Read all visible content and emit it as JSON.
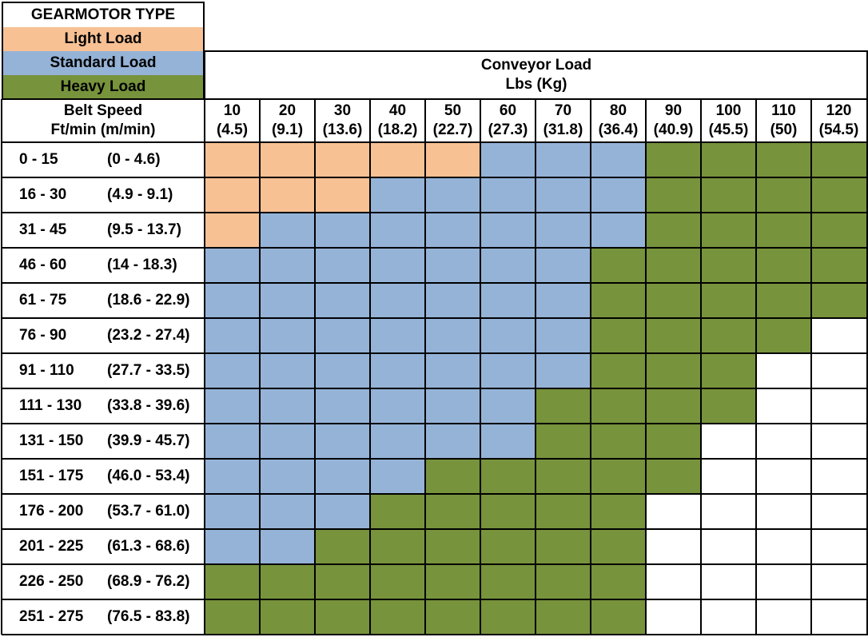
{
  "legend": {
    "title": "GEARMOTOR TYPE",
    "items": [
      {
        "label": "Light Load",
        "color": "#F8C194"
      },
      {
        "label": "Standard Load",
        "color": "#95B3D7"
      },
      {
        "label": "Heavy Load",
        "color": "#77933C"
      }
    ]
  },
  "header": {
    "load_title": "Conveyor Load",
    "load_units": "Lbs (Kg)",
    "speed_title": "Belt Speed",
    "speed_units": "Ft/min (m/min)"
  },
  "load_columns": [
    {
      "lbs": "10",
      "kg": "(4.5)"
    },
    {
      "lbs": "20",
      "kg": "(9.1)"
    },
    {
      "lbs": "30",
      "kg": "(13.6)"
    },
    {
      "lbs": "40",
      "kg": "(18.2)"
    },
    {
      "lbs": "50",
      "kg": "(22.7)"
    },
    {
      "lbs": "60",
      "kg": "(27.3)"
    },
    {
      "lbs": "70",
      "kg": "(31.8)"
    },
    {
      "lbs": "80",
      "kg": "(36.4)"
    },
    {
      "lbs": "90",
      "kg": "(40.9)"
    },
    {
      "lbs": "100",
      "kg": "(45.5)"
    },
    {
      "lbs": "110",
      "kg": "(50)"
    },
    {
      "lbs": "120",
      "kg": "(54.5)"
    }
  ],
  "speed_rows": [
    {
      "ft": "0 - 15",
      "m": "(0 - 4.6)",
      "cells": "LLLLLSSSHHHH"
    },
    {
      "ft": "16 - 30",
      "m": "(4.9 - 9.1)",
      "cells": "LLLSSSSSHHHH"
    },
    {
      "ft": "31 - 45",
      "m": "(9.5 - 13.7)",
      "cells": "LSSSSSSSHHHH"
    },
    {
      "ft": "46 - 60",
      "m": "(14 - 18.3)",
      "cells": "SSSSSSSHHHHH"
    },
    {
      "ft": "61 - 75",
      "m": "(18.6 - 22.9)",
      "cells": "SSSSSSSHHHHH"
    },
    {
      "ft": "76 - 90",
      "m": "(23.2 - 27.4)",
      "cells": "SSSSSSSHHHH-"
    },
    {
      "ft": "91 - 110",
      "m": "(27.7 - 33.5)",
      "cells": "SSSSSSSHHH--"
    },
    {
      "ft": "111 - 130",
      "m": "(33.8 - 39.6)",
      "cells": "SSSSSSHHHH--"
    },
    {
      "ft": "131 - 150",
      "m": "(39.9 - 45.7)",
      "cells": "SSSSSSHHH---"
    },
    {
      "ft": "151 - 175",
      "m": "(46.0 - 53.4)",
      "cells": "SSSSHHHHH---"
    },
    {
      "ft": "176 - 200",
      "m": "(53.7 - 61.0)",
      "cells": "SSSHHHHH----"
    },
    {
      "ft": "201 - 225",
      "m": "(61.3 - 68.6)",
      "cells": "SSHHHHHH----"
    },
    {
      "ft": "226 - 250",
      "m": "(68.9 - 76.2)",
      "cells": "HHHHHHHH----"
    },
    {
      "ft": "251 - 275",
      "m": "(76.5 - 83.8)",
      "cells": "HHHHHHHH----"
    }
  ],
  "colors": {
    "L": "#F8C194",
    "S": "#95B3D7",
    "H": "#77933C",
    "-": "#FFFFFF",
    "grid": "#000000"
  }
}
